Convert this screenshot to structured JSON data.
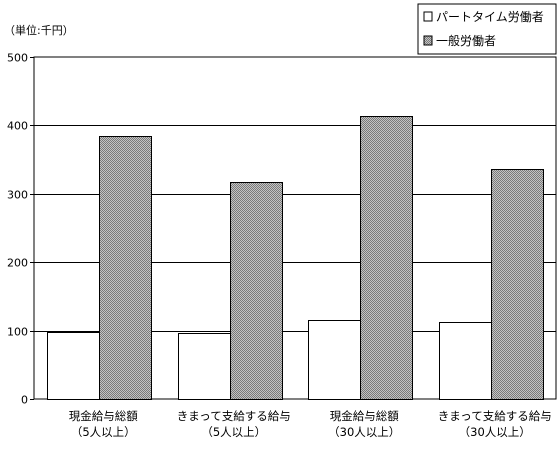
{
  "chart_data": {
    "type": "bar",
    "unit_label": "（単位:千円）",
    "categories": [
      [
        "現金給与総額",
        "（5人以上）"
      ],
      [
        "きまって支給する給与",
        "（5人以上）"
      ],
      [
        "現金給与総額",
        "（30人以上）"
      ],
      [
        "きまって支給する給与",
        "（30人以上）"
      ]
    ],
    "series": [
      {
        "name": "パートタイム労働者",
        "values": [
          98,
          97,
          115,
          112
        ],
        "color": "#ffffff"
      },
      {
        "name": "一般労働者",
        "values": [
          384,
          317,
          414,
          336
        ],
        "color": "#a0a0a0"
      }
    ],
    "ylim": [
      0,
      500
    ],
    "yticks": [
      0,
      100,
      200,
      300,
      400,
      500
    ],
    "grid": true,
    "legend_position": "top-right"
  }
}
